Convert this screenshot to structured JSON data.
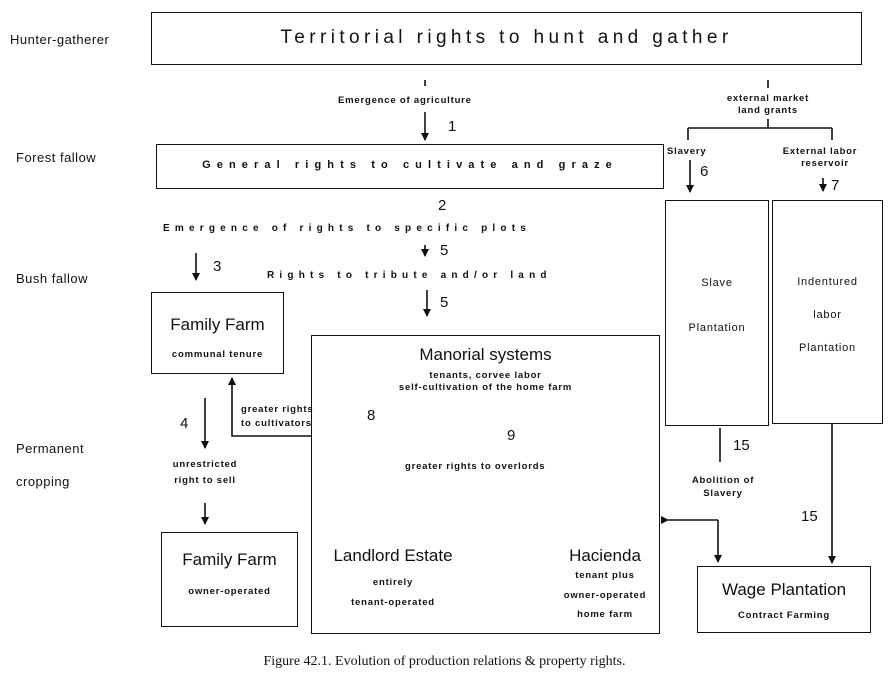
{
  "levels": {
    "hunter_gatherer": "Hunter-gatherer",
    "forest_fallow": "Forest fallow",
    "bush_fallow": "Bush fallow",
    "permanent": "Permanent",
    "cropping": "cropping"
  },
  "boxes": {
    "territorial": "Territorial rights to hunt and gather",
    "general_rights": "General rights to cultivate and graze",
    "family_farm_1": {
      "title": "Family Farm",
      "sub": "communal tenure"
    },
    "manorial": {
      "title": "Manorial systems",
      "line1": "tenants, corvee labor",
      "line2": "self-cultivation of the home farm"
    },
    "landlord": {
      "title": "Landlord Estate",
      "line1": "entirely",
      "line2": "tenant-operated"
    },
    "hacienda": {
      "title": "Hacienda",
      "line1": "tenant plus",
      "line2": "owner-operated",
      "line3": "home farm"
    },
    "slave": {
      "line1": "Slave",
      "line2": "Plantation"
    },
    "indentured": {
      "line1": "Indentured",
      "line2": "labor",
      "line3": "Plantation"
    },
    "family_farm_2": {
      "title": "Family Farm",
      "sub": "owner-operated"
    },
    "wage": {
      "title": "Wage Plantation",
      "sub": "Contract Farming"
    }
  },
  "labels": {
    "emergence_agriculture": "Emergence of agriculture",
    "external_market": "external market",
    "land_grants": "land grants",
    "slavery": "Slavery",
    "external_labor": "External labor",
    "reservoir": "reservoir",
    "emergence_rights": "Emergence of rights to specific plots",
    "rights_tribute": "Rights to tribute and/or land",
    "greater_rights_cultivators_1": "greater rights",
    "greater_rights_cultivators_2": "to cultivators",
    "unrestricted_1": "unrestricted",
    "unrestricted_2": "right to sell",
    "greater_rights_overlords": "greater rights to overlords",
    "abolition_1": "Abolition of",
    "abolition_2": "Slavery"
  },
  "numbers": {
    "n1": "1",
    "n2": "2",
    "n3": "3",
    "n4": "4",
    "n5a": "5",
    "n5b": "5",
    "n6": "6",
    "n7": "7",
    "n8": "8",
    "n9": "9",
    "n15a": "15",
    "n15b": "15"
  },
  "caption": "Figure 42.1.  Evolution of production relations & property rights."
}
